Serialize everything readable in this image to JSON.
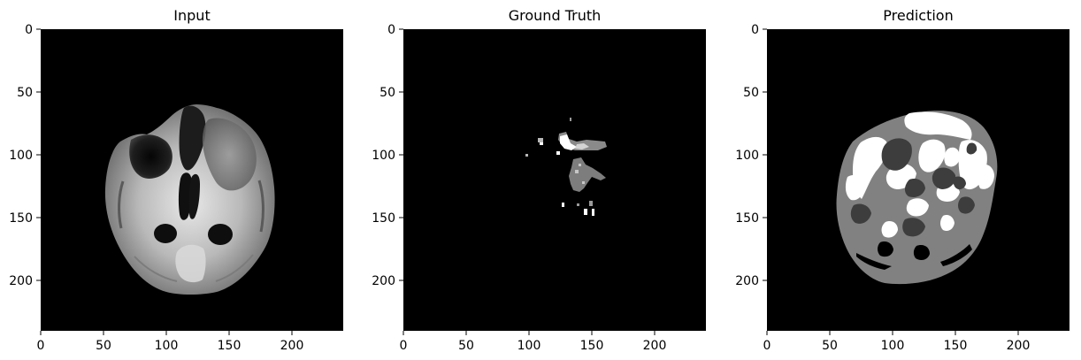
{
  "figure": {
    "panels": [
      {
        "id": "input",
        "title": "Input",
        "xticks": [
          "0",
          "50",
          "100",
          "150",
          "200"
        ],
        "yticks": [
          "0",
          "50",
          "100",
          "150",
          "200"
        ]
      },
      {
        "id": "ground-truth",
        "title": "Ground Truth",
        "xticks": [
          "0",
          "50",
          "100",
          "150",
          "200"
        ],
        "yticks": [
          "0",
          "50",
          "100",
          "150",
          "200"
        ]
      },
      {
        "id": "prediction",
        "title": "Prediction",
        "xticks": [
          "0",
          "50",
          "100",
          "150",
          "200"
        ],
        "yticks": [
          "0",
          "50",
          "100",
          "150",
          "200"
        ]
      }
    ],
    "colors": {
      "background": "#ffffff",
      "image_background": "#000000",
      "text": "#000000"
    }
  }
}
